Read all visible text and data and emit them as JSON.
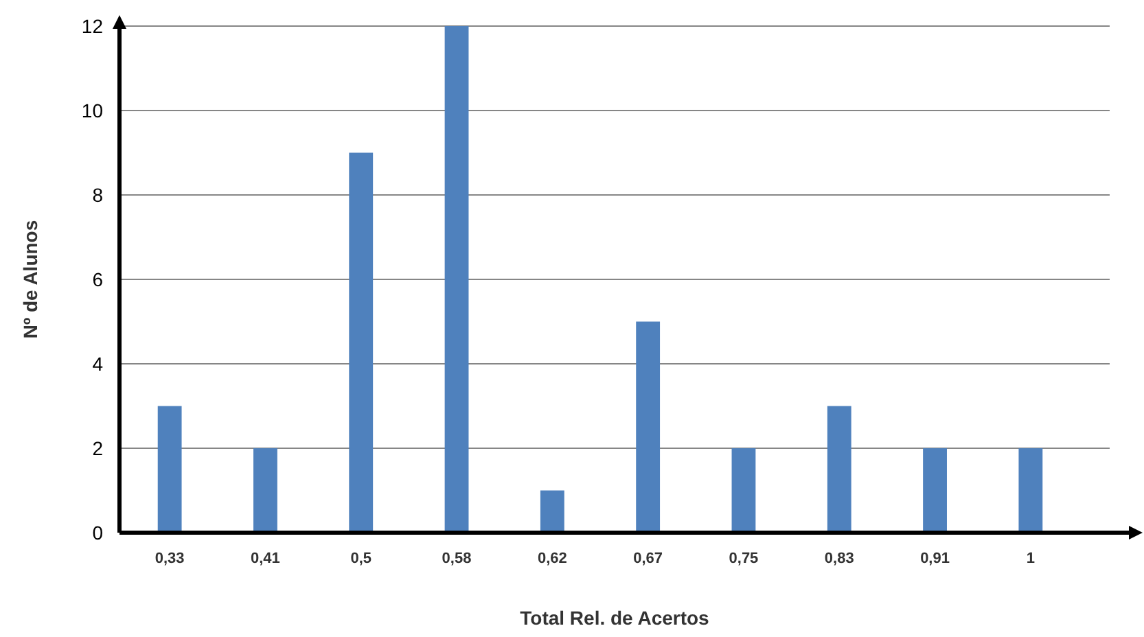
{
  "chart_data": {
    "type": "bar",
    "xlabel": "Total Rel. de Acertos",
    "ylabel": "Nº de Alunos",
    "categories": [
      "0,33",
      "0,41",
      "0,5",
      "0,58",
      "0,62",
      "0,67",
      "0,75",
      "0,83",
      "0,91",
      "1"
    ],
    "values": [
      3,
      2,
      9,
      12,
      1,
      5,
      2,
      3,
      2,
      2
    ],
    "color": "#4f81bd",
    "ylim": [
      0,
      12
    ],
    "yticks": [
      0,
      2,
      4,
      6,
      8,
      10,
      12
    ],
    "grid": "y"
  }
}
